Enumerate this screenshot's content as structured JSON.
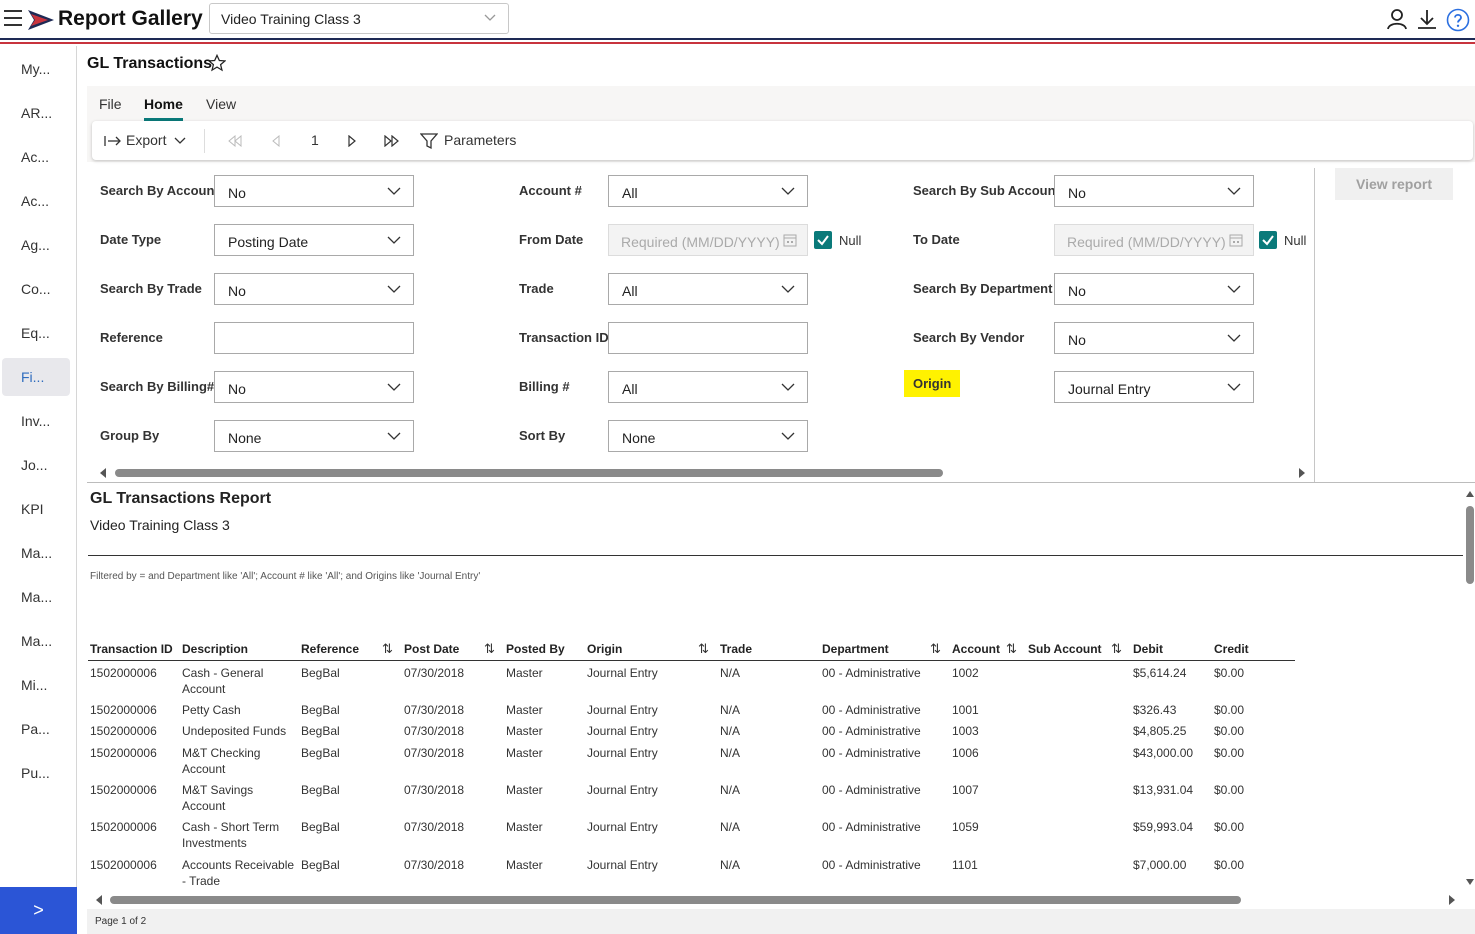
{
  "app": {
    "title": "Report Gallery",
    "workspace": "Video Training Class 3",
    "accent": "#2b55d6",
    "stripe_colors": [
      "#1e2a55",
      "#c8343d"
    ]
  },
  "sidebar": {
    "items": [
      {
        "label": "My..."
      },
      {
        "label": "AR..."
      },
      {
        "label": "Ac..."
      },
      {
        "label": "Ac..."
      },
      {
        "label": "Ag..."
      },
      {
        "label": "Co..."
      },
      {
        "label": "Eq..."
      },
      {
        "label": "Fi..."
      },
      {
        "label": "Inv..."
      },
      {
        "label": "Jo..."
      },
      {
        "label": "KPI"
      },
      {
        "label": "Ma..."
      },
      {
        "label": "Ma..."
      },
      {
        "label": "Ma..."
      },
      {
        "label": "Mi..."
      },
      {
        "label": "Pa..."
      },
      {
        "label": "Pu..."
      }
    ],
    "active_index": 7,
    "expand_label": ">"
  },
  "page": {
    "title": "GL Transactions"
  },
  "ribbon": {
    "tabs": [
      "File",
      "Home",
      "View"
    ],
    "active_tab": "Home",
    "export_label": "Export",
    "page_number": "1",
    "parameters_label": "Parameters"
  },
  "params": {
    "search_by_account": {
      "label": "Search By Account",
      "value": "No"
    },
    "date_type": {
      "label": "Date Type",
      "value": "Posting Date"
    },
    "search_by_trade": {
      "label": "Search By Trade",
      "value": "No"
    },
    "reference": {
      "label": "Reference",
      "value": ""
    },
    "search_by_billing": {
      "label": "Search By Billing#",
      "value": "No"
    },
    "group_by": {
      "label": "Group By",
      "value": "None"
    },
    "account_num": {
      "label": "Account #",
      "value": "All"
    },
    "from_date": {
      "label": "From Date",
      "placeholder": "Required (MM/DD/YYYY)",
      "null_label": "Null"
    },
    "trade": {
      "label": "Trade",
      "value": "All"
    },
    "transaction_id": {
      "label": "Transaction ID",
      "value": ""
    },
    "billing_num": {
      "label": "Billing #",
      "value": "All"
    },
    "sort_by": {
      "label": "Sort By",
      "value": "None"
    },
    "search_by_sub_account": {
      "label": "Search By Sub Account",
      "value": "No"
    },
    "to_date": {
      "label": "To Date",
      "placeholder": "Required (MM/DD/YYYY)",
      "null_label": "Null"
    },
    "search_by_department": {
      "label": "Search By Department",
      "value": "No"
    },
    "search_by_vendor": {
      "label": "Search By Vendor",
      "value": "No"
    },
    "origin": {
      "label": "Origin",
      "value": "Journal Entry"
    },
    "view_report_label": "View report"
  },
  "report": {
    "title": "GL Transactions Report",
    "subtitle": "Video Training Class 3",
    "filter_text": "Filtered by =  and Department like 'All'; Account # like 'All';  and Origins like 'Journal Entry'",
    "columns": [
      "Transaction ID",
      "Description",
      "Reference",
      "Post Date",
      "Posted By",
      "Origin",
      "Trade",
      "Department",
      "Account",
      "Sub Account",
      "Debit",
      "Credit"
    ],
    "rows": [
      {
        "id": "1502000006",
        "desc1": "Cash - General",
        "desc2": "Account",
        "ref": "BegBal",
        "date": "07/30/2018",
        "by": "Master",
        "origin": "Journal Entry",
        "trade": "N/A",
        "dept": "00 - Administrative",
        "acct": "1002",
        "sub": "",
        "debit": "$5,614.24",
        "credit": "$0.00"
      },
      {
        "id": "1502000006",
        "desc1": "Petty Cash",
        "desc2": "",
        "ref": "BegBal",
        "date": "07/30/2018",
        "by": "Master",
        "origin": "Journal Entry",
        "trade": "N/A",
        "dept": "00 - Administrative",
        "acct": "1001",
        "sub": "",
        "debit": "$326.43",
        "credit": "$0.00"
      },
      {
        "id": "1502000006",
        "desc1": "Undeposited Funds",
        "desc2": "",
        "ref": "BegBal",
        "date": "07/30/2018",
        "by": "Master",
        "origin": "Journal Entry",
        "trade": "N/A",
        "dept": "00 - Administrative",
        "acct": "1003",
        "sub": "",
        "debit": "$4,805.25",
        "credit": "$0.00"
      },
      {
        "id": "1502000006",
        "desc1": "M&T Checking",
        "desc2": "Account",
        "ref": "BegBal",
        "date": "07/30/2018",
        "by": "Master",
        "origin": "Journal Entry",
        "trade": "N/A",
        "dept": "00 - Administrative",
        "acct": "1006",
        "sub": "",
        "debit": "$43,000.00",
        "credit": "$0.00"
      },
      {
        "id": "1502000006",
        "desc1": "M&T Savings",
        "desc2": "Account",
        "ref": "BegBal",
        "date": "07/30/2018",
        "by": "Master",
        "origin": "Journal Entry",
        "trade": "N/A",
        "dept": "00 - Administrative",
        "acct": "1007",
        "sub": "",
        "debit": "$13,931.04",
        "credit": "$0.00"
      },
      {
        "id": "1502000006",
        "desc1": "Cash - Short Term",
        "desc2": "Investments",
        "ref": "BegBal",
        "date": "07/30/2018",
        "by": "Master",
        "origin": "Journal Entry",
        "trade": "N/A",
        "dept": "00 - Administrative",
        "acct": "1059",
        "sub": "",
        "debit": "$59,993.04",
        "credit": "$0.00"
      },
      {
        "id": "1502000006",
        "desc1": "Accounts Receivable",
        "desc2": "- Trade",
        "ref": "BegBal",
        "date": "07/30/2018",
        "by": "Master",
        "origin": "Journal Entry",
        "trade": "N/A",
        "dept": "00 - Administrative",
        "acct": "1101",
        "sub": "",
        "debit": "$7,000.00",
        "credit": "$0.00"
      }
    ],
    "page_status": "Page 1 of 2"
  }
}
